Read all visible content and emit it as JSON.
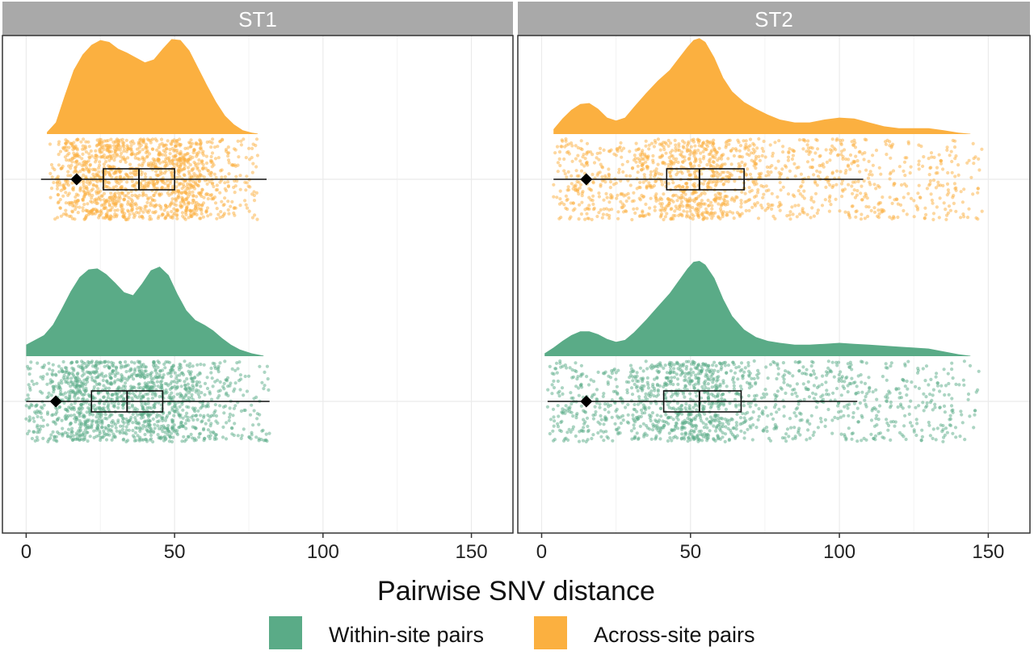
{
  "chart_data": {
    "type": "raincloud",
    "xlabel": "Pairwise SNV distance",
    "xlim": [
      -8,
      164
    ],
    "x_ticks": [
      0,
      50,
      100,
      150
    ],
    "grid": true,
    "legend_position": "bottom",
    "colors": {
      "within": "#5aab87",
      "across": "#fbb040",
      "strip": "#a9a9a9",
      "grid": "#ebebeb",
      "border": "#333333"
    },
    "legend": [
      {
        "key": "within",
        "label": "Within-site pairs"
      },
      {
        "key": "across",
        "label": "Across-site pairs"
      }
    ],
    "panels": [
      {
        "name": "ST1",
        "series": [
          {
            "key": "across",
            "density": [
              [
                7,
                0.02
              ],
              [
                10,
                0.12
              ],
              [
                13,
                0.4
              ],
              [
                16,
                0.66
              ],
              [
                19,
                0.82
              ],
              [
                22,
                0.92
              ],
              [
                25,
                0.97
              ],
              [
                28,
                0.95
              ],
              [
                31,
                0.88
              ],
              [
                34,
                0.84
              ],
              [
                37,
                0.79
              ],
              [
                40,
                0.74
              ],
              [
                43,
                0.77
              ],
              [
                46,
                0.88
              ],
              [
                49,
                0.98
              ],
              [
                52,
                0.97
              ],
              [
                55,
                0.86
              ],
              [
                58,
                0.68
              ],
              [
                61,
                0.5
              ],
              [
                64,
                0.33
              ],
              [
                67,
                0.19
              ],
              [
                70,
                0.1
              ],
              [
                73,
                0.04
              ],
              [
                76,
                0.015
              ],
              [
                78,
                0.005
              ]
            ],
            "points_range": [
              8,
              78
            ],
            "whisker": [
              5,
              81
            ],
            "box": [
              26,
              38,
              50
            ],
            "marker": 17
          },
          {
            "key": "within",
            "density": [
              [
                0,
                0.12
              ],
              [
                3,
                0.17
              ],
              [
                6,
                0.22
              ],
              [
                9,
                0.33
              ],
              [
                12,
                0.5
              ],
              [
                15,
                0.68
              ],
              [
                18,
                0.83
              ],
              [
                21,
                0.91
              ],
              [
                24,
                0.92
              ],
              [
                27,
                0.86
              ],
              [
                30,
                0.77
              ],
              [
                33,
                0.67
              ],
              [
                36,
                0.64
              ],
              [
                39,
                0.76
              ],
              [
                42,
                0.9
              ],
              [
                45,
                0.94
              ],
              [
                48,
                0.85
              ],
              [
                51,
                0.65
              ],
              [
                54,
                0.48
              ],
              [
                57,
                0.38
              ],
              [
                60,
                0.33
              ],
              [
                63,
                0.27
              ],
              [
                66,
                0.19
              ],
              [
                69,
                0.12
              ],
              [
                72,
                0.07
              ],
              [
                76,
                0.03
              ],
              [
                80,
                0.005
              ]
            ],
            "points_range": [
              0,
              82
            ],
            "whisker": [
              0,
              82
            ],
            "box": [
              22,
              34,
              46
            ],
            "marker": 10
          }
        ]
      },
      {
        "name": "ST2",
        "series": [
          {
            "key": "across",
            "density": [
              [
                4,
                0.05
              ],
              [
                7,
                0.16
              ],
              [
                10,
                0.25
              ],
              [
                13,
                0.31
              ],
              [
                16,
                0.32
              ],
              [
                19,
                0.26
              ],
              [
                22,
                0.17
              ],
              [
                25,
                0.14
              ],
              [
                28,
                0.17
              ],
              [
                31,
                0.28
              ],
              [
                35,
                0.42
              ],
              [
                39,
                0.55
              ],
              [
                43,
                0.66
              ],
              [
                46,
                0.78
              ],
              [
                49,
                0.9
              ],
              [
                51,
                0.97
              ],
              [
                53,
                0.99
              ],
              [
                55,
                0.95
              ],
              [
                58,
                0.79
              ],
              [
                61,
                0.58
              ],
              [
                64,
                0.44
              ],
              [
                68,
                0.33
              ],
              [
                72,
                0.26
              ],
              [
                76,
                0.2
              ],
              [
                80,
                0.15
              ],
              [
                85,
                0.12
              ],
              [
                90,
                0.12
              ],
              [
                95,
                0.15
              ],
              [
                100,
                0.17
              ],
              [
                105,
                0.16
              ],
              [
                110,
                0.12
              ],
              [
                115,
                0.08
              ],
              [
                120,
                0.06
              ],
              [
                125,
                0.06
              ],
              [
                130,
                0.06
              ],
              [
                135,
                0.04
              ],
              [
                140,
                0.015
              ],
              [
                144,
                0.003
              ]
            ],
            "points_range": [
              4,
              148
            ],
            "whisker": [
              4,
              108
            ],
            "box": [
              42,
              53,
              68
            ],
            "marker": 15
          },
          {
            "key": "within",
            "density": [
              [
                1,
                0.03
              ],
              [
                4,
                0.09
              ],
              [
                7,
                0.16
              ],
              [
                10,
                0.22
              ],
              [
                13,
                0.26
              ],
              [
                16,
                0.26
              ],
              [
                19,
                0.23
              ],
              [
                22,
                0.18
              ],
              [
                25,
                0.15
              ],
              [
                28,
                0.17
              ],
              [
                31,
                0.25
              ],
              [
                35,
                0.38
              ],
              [
                39,
                0.52
              ],
              [
                43,
                0.66
              ],
              [
                46,
                0.79
              ],
              [
                49,
                0.92
              ],
              [
                51,
                0.99
              ],
              [
                53,
                1.0
              ],
              [
                55,
                0.96
              ],
              [
                58,
                0.82
              ],
              [
                61,
                0.6
              ],
              [
                64,
                0.42
              ],
              [
                68,
                0.28
              ],
              [
                72,
                0.2
              ],
              [
                76,
                0.16
              ],
              [
                80,
                0.14
              ],
              [
                85,
                0.12
              ],
              [
                90,
                0.12
              ],
              [
                95,
                0.13
              ],
              [
                100,
                0.14
              ],
              [
                105,
                0.13
              ],
              [
                110,
                0.12
              ],
              [
                115,
                0.11
              ],
              [
                120,
                0.1
              ],
              [
                125,
                0.09
              ],
              [
                130,
                0.08
              ],
              [
                135,
                0.05
              ],
              [
                140,
                0.02
              ],
              [
                144,
                0.004
              ]
            ],
            "points_range": [
              2,
              147
            ],
            "whisker": [
              2,
              106
            ],
            "box": [
              41,
              53,
              67
            ],
            "marker": 15
          }
        ]
      }
    ]
  }
}
